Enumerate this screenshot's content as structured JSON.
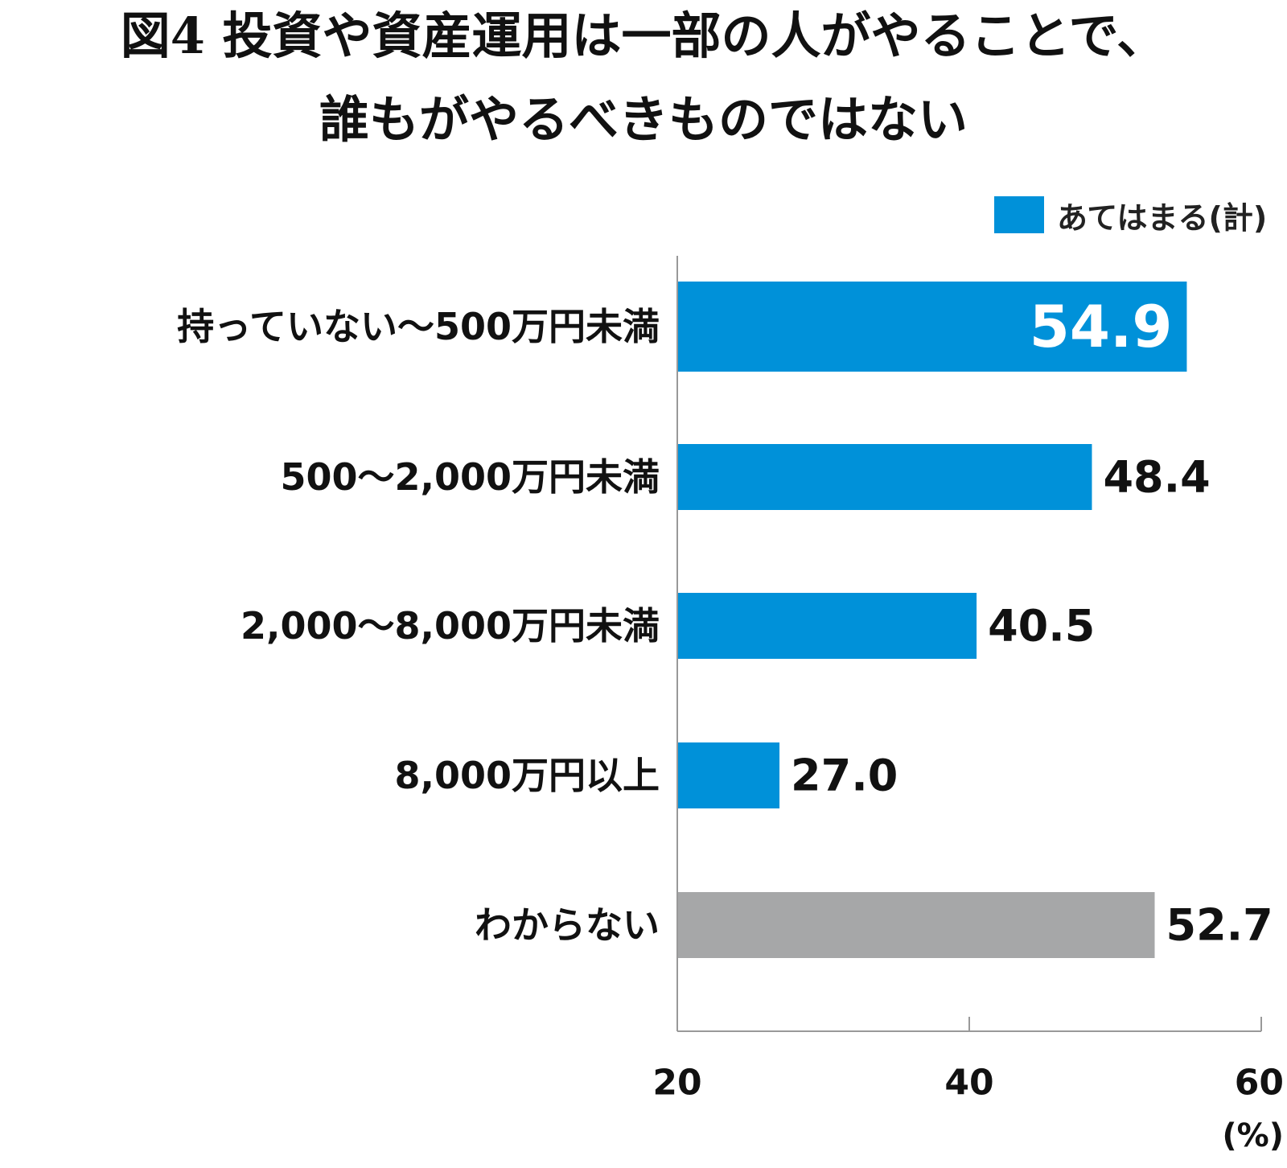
{
  "title_line1": "図4 投資や資産運用は一部の人がやることで、",
  "title_line2": "誰もがやるべきものではない",
  "legend": {
    "label": "あてはまる(計)",
    "color": "#0091d9"
  },
  "colors": {
    "primary": "#0091d9",
    "unknown": "#a6a7a8",
    "axis": "#999999"
  },
  "chart_data": {
    "type": "bar",
    "orientation": "horizontal",
    "title": "図4 投資や資産運用は一部の人がやることで、誰もがやるべきものではない",
    "categories": [
      "持っていない～500万円未満",
      "500～2,000万円未満",
      "2,000～8,000万円未満",
      "8,000万円以上",
      "わからない"
    ],
    "series": [
      {
        "name": "あてはまる(計)",
        "values": [
          54.9,
          48.4,
          40.5,
          27.0,
          52.7
        ],
        "value_labels": [
          "54.9",
          "48.4",
          "40.5",
          "27.0",
          "52.7"
        ]
      }
    ],
    "highlight_index": 0,
    "gray_index": 4,
    "xlim": [
      20,
      60
    ],
    "xticks": [
      20,
      40,
      60
    ],
    "xtick_labels": [
      "20",
      "40",
      "60"
    ],
    "xunit": "(%)",
    "legend_position": "top-right",
    "grid": false
  }
}
